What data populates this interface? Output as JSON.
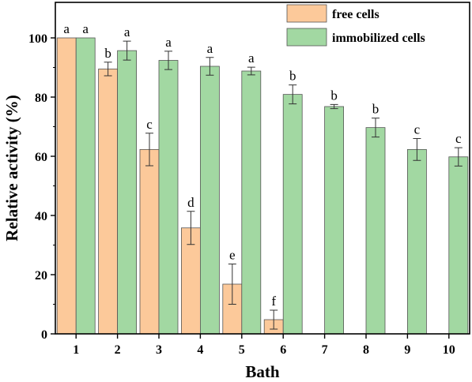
{
  "chart_data": {
    "type": "bar",
    "xlabel": "Bath",
    "ylabel": "Relative activity (%)",
    "ylim": [
      0,
      112
    ],
    "yticks": [
      0,
      20,
      40,
      60,
      80,
      100
    ],
    "categories": [
      "1",
      "2",
      "3",
      "4",
      "5",
      "6",
      "7",
      "8",
      "9",
      "10"
    ],
    "legend_position": "top-right",
    "series": [
      {
        "name": "free cells",
        "color": "#fcc99a",
        "values": [
          100,
          89.5,
          62.3,
          35.8,
          16.8,
          4.8,
          null,
          null,
          null,
          null
        ],
        "errors": [
          0,
          2.3,
          5.5,
          5.6,
          6.8,
          3.2,
          null,
          null,
          null,
          null
        ],
        "labels": [
          "a",
          "b",
          "c",
          "d",
          "e",
          "f",
          "",
          "",
          "",
          ""
        ]
      },
      {
        "name": "immobilized cells",
        "color": "#a2d8a2",
        "values": [
          100,
          95.7,
          92.4,
          90.4,
          88.8,
          80.9,
          76.8,
          69.7,
          62.3,
          59.8
        ],
        "errors": [
          0,
          3.2,
          3.1,
          3.0,
          1.3,
          3.2,
          0.7,
          3.2,
          3.7,
          3.1
        ],
        "labels": [
          "a",
          "a",
          "a",
          "a",
          "a",
          "b",
          "b",
          "b",
          "c",
          "c"
        ]
      }
    ]
  }
}
